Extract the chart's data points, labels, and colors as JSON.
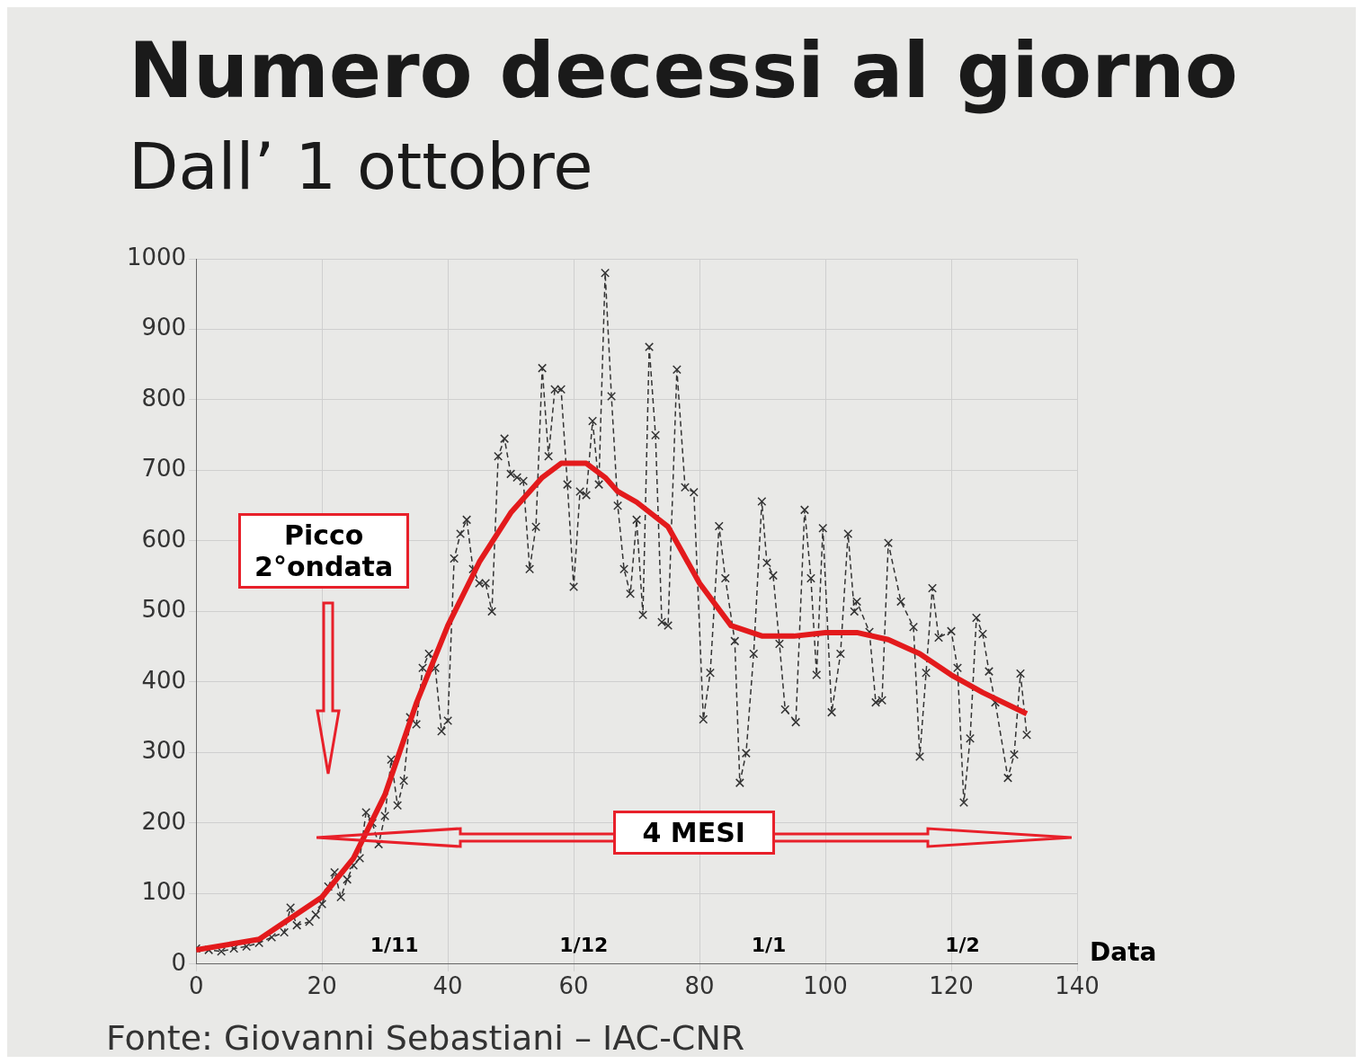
{
  "chart_data": {
    "type": "line",
    "title": "Numero decessi al giorno",
    "subtitle": "Dall’ 1 ottobre",
    "xlabel": "Data",
    "xlim": [
      0,
      140
    ],
    "xticks": [
      0,
      20,
      40,
      60,
      80,
      100,
      120,
      140
    ],
    "ylim": [
      0,
      1000
    ],
    "yticks": [
      0,
      100,
      200,
      300,
      400,
      500,
      600,
      700,
      800,
      900,
      1000
    ],
    "grid": true,
    "legend": false,
    "series": [
      {
        "color": "#333333",
        "marker": "cross",
        "line_style": "dashed",
        "x": [
          0,
          2,
          4,
          6,
          8,
          10,
          12,
          14,
          15,
          16,
          18,
          19,
          20,
          21,
          22,
          23,
          24,
          25,
          26,
          27,
          28,
          29,
          30,
          31,
          32,
          33,
          34,
          35,
          36,
          37,
          38,
          39,
          40,
          41,
          42,
          43,
          44,
          45,
          46,
          47,
          48,
          49,
          50,
          51,
          52,
          53,
          54,
          55,
          56,
          57,
          58,
          59,
          60,
          61,
          62,
          63,
          64,
          65,
          66,
          67,
          68,
          69,
          70,
          71,
          72,
          73,
          74,
          75,
          76.4,
          77.7,
          79.1,
          80.6,
          81.7,
          83.1,
          84.1,
          85.6,
          86.4,
          87.4,
          88.6,
          89.9,
          90.7,
          91.7,
          92.7,
          93.6,
          95.3,
          96.7,
          97.7,
          98.6,
          99.6,
          101,
          102.4,
          103.6,
          104.6,
          105,
          107,
          108,
          109,
          110,
          112,
          114,
          115,
          116,
          117,
          118,
          120,
          121,
          122,
          123,
          124,
          125,
          126,
          127,
          129,
          130,
          131,
          132
        ],
        "values": [
          22,
          20,
          18,
          22,
          25,
          30,
          38,
          45,
          80,
          55,
          60,
          70,
          85,
          110,
          130,
          95,
          120,
          140,
          150,
          215,
          200,
          170,
          210,
          290,
          225,
          260,
          350,
          340,
          420,
          440,
          420,
          330,
          345,
          575,
          610,
          630,
          560,
          540,
          540,
          500,
          720,
          745,
          695,
          690,
          685,
          560,
          620,
          845,
          720,
          815,
          815,
          680,
          535,
          670,
          665,
          770,
          680,
          980,
          805,
          650,
          560,
          525,
          630,
          495,
          875,
          750,
          485,
          480,
          843,
          676,
          669,
          347,
          413,
          621,
          547,
          458,
          257,
          299,
          440,
          656,
          569,
          551,
          454,
          361,
          343,
          644,
          547,
          410,
          618,
          357,
          440,
          610,
          500,
          514,
          471,
          371,
          374,
          597,
          514,
          478,
          294,
          413,
          533,
          463,
          472,
          420,
          229,
          320,
          491,
          468,
          415,
          371,
          264,
          297,
          412,
          325
        ]
      },
      {
        "color": "#e31a1c",
        "marker": "none",
        "line_style": "solid",
        "x": [
          0,
          10,
          20,
          25,
          30,
          35,
          40,
          45,
          50,
          55,
          58,
          62,
          65,
          67,
          70,
          75,
          80,
          85,
          90,
          95,
          100,
          105,
          110,
          115,
          120,
          125,
          132
        ],
        "values": [
          20,
          35,
          95,
          150,
          240,
          370,
          480,
          570,
          640,
          690,
          710,
          710,
          690,
          670,
          655,
          620,
          540,
          480,
          465,
          465,
          470,
          470,
          460,
          440,
          410,
          385,
          355
        ]
      }
    ],
    "annotations": [
      "Picco 2°ondata",
      "4 MESI",
      "1/11",
      "1/12",
      "1/1",
      "1/2",
      "Fonte: Giovanni Sebastiani – IAC-CNR"
    ]
  }
}
